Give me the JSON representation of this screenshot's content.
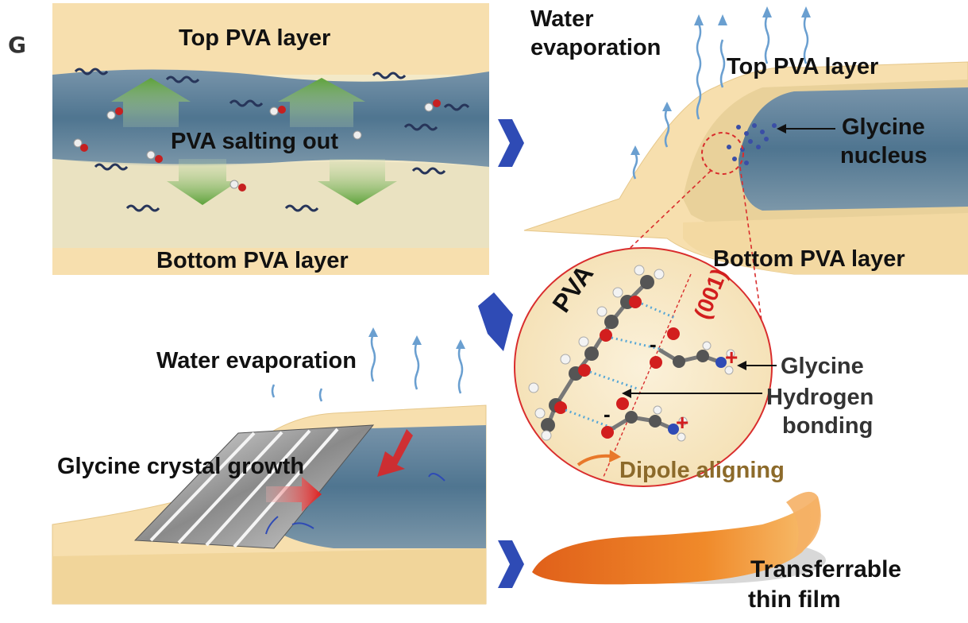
{
  "panel_letter": "G",
  "panel_tl": {
    "top_label": "Top PVA layer",
    "middle_label": "PVA salting out",
    "bottom_label": "Bottom PVA layer"
  },
  "panel_tr": {
    "water_label_line1": "Water",
    "water_label_line2": "evaporation",
    "top_label": "Top PVA layer",
    "nucleus_line1": "Glycine",
    "nucleus_line2": "nucleus",
    "bottom_label": "Bottom PVA layer"
  },
  "panel_center": {
    "pva_label": "PVA",
    "plane_label": "(001)",
    "glycine_label": "Glycine",
    "hbond_line1": "Hydrogen",
    "hbond_line2": "bonding",
    "dipole_label": "Dipole aligning",
    "minus_sign": "-",
    "plus_sign": "+"
  },
  "panel_bl": {
    "water_label": "Water evaporation",
    "growth_label": "Glycine crystal growth"
  },
  "panel_br": {
    "film_line1": "Transferrable",
    "film_line2": "thin film"
  },
  "colors": {
    "pva_layer": "#f6deaa",
    "solution": "#5b7f99",
    "arrow_blue": "#2f4bb5",
    "green_arrow": "#6fae4a",
    "red_circle": "#d92d2d",
    "dipole_text": "#8c6a2a",
    "film_orange": "#e8651a"
  }
}
